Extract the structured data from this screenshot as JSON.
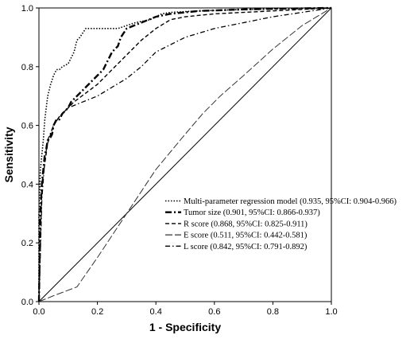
{
  "chart_data": {
    "type": "line",
    "xlabel": "1 - Specificity",
    "ylabel": "Sensitivity",
    "xlim": [
      0,
      1
    ],
    "ylim": [
      0,
      1
    ],
    "x_ticks": [
      "0.0",
      "0.2",
      "0.4",
      "0.6",
      "0.8",
      "1.0"
    ],
    "y_ticks": [
      "0.0",
      "0.2",
      "0.4",
      "0.6",
      "0.8",
      "1.0"
    ],
    "grid": false,
    "legend_position": "lower-right",
    "reference_line": {
      "x": [
        0,
        1
      ],
      "y": [
        0,
        1
      ]
    },
    "series": [
      {
        "name": "Multi-parameter regression model (0.935, 95%CI: 0.904-0.966)",
        "style": "dotted",
        "x": [
          0,
          0,
          0.005,
          0.01,
          0.015,
          0.02,
          0.025,
          0.03,
          0.04,
          0.05,
          0.06,
          0.07,
          0.08,
          0.1,
          0.11,
          0.12,
          0.13,
          0.14,
          0.16,
          0.2,
          0.27,
          0.33,
          0.38,
          0.4,
          0.42,
          0.45,
          0.55,
          0.7,
          0.85,
          1
        ],
        "y": [
          0,
          0.3,
          0.45,
          0.5,
          0.55,
          0.62,
          0.66,
          0.7,
          0.74,
          0.77,
          0.79,
          0.79,
          0.8,
          0.81,
          0.83,
          0.85,
          0.89,
          0.9,
          0.93,
          0.93,
          0.93,
          0.95,
          0.96,
          0.97,
          0.98,
          0.985,
          0.99,
          0.995,
          0.998,
          1
        ]
      },
      {
        "name": "Tumor size",
        "label": "Tumor size (0.901, 95%CI: 0.866-0.937)",
        "style": "dash-dot-thick",
        "x": [
          0,
          0.005,
          0.01,
          0.015,
          0.02,
          0.025,
          0.03,
          0.04,
          0.045,
          0.05,
          0.06,
          0.07,
          0.08,
          0.09,
          0.1,
          0.11,
          0.13,
          0.15,
          0.18,
          0.2,
          0.22,
          0.25,
          0.27,
          0.28,
          0.3,
          0.35,
          0.4,
          0.45,
          0.55,
          0.7,
          0.85,
          1
        ],
        "y": [
          0,
          0.3,
          0.4,
          0.45,
          0.5,
          0.52,
          0.55,
          0.56,
          0.57,
          0.6,
          0.62,
          0.62,
          0.64,
          0.65,
          0.66,
          0.68,
          0.7,
          0.72,
          0.75,
          0.77,
          0.79,
          0.85,
          0.87,
          0.9,
          0.93,
          0.95,
          0.97,
          0.98,
          0.99,
          0.995,
          0.998,
          1
        ]
      },
      {
        "name": "R score",
        "label": "R score      (0.868, 95%CI: 0.825-0.911)",
        "style": "dashed",
        "x": [
          0,
          0.01,
          0.03,
          0.05,
          0.07,
          0.09,
          0.12,
          0.16,
          0.2,
          0.25,
          0.3,
          0.35,
          0.4,
          0.45,
          0.5,
          0.6,
          0.8,
          1
        ],
        "y": [
          0,
          0.4,
          0.54,
          0.6,
          0.63,
          0.65,
          0.68,
          0.71,
          0.74,
          0.79,
          0.84,
          0.89,
          0.93,
          0.96,
          0.97,
          0.98,
          0.99,
          1
        ]
      },
      {
        "name": "E score",
        "label": "E score      (0.511, 95%CI: 0.442-0.581)",
        "style": "long-dash-thin",
        "x": [
          0,
          0.05,
          0.13,
          0.2,
          0.3,
          0.4,
          0.5,
          0.56,
          0.62,
          0.7,
          0.8,
          0.9,
          1
        ],
        "y": [
          0,
          0.02,
          0.05,
          0.15,
          0.3,
          0.45,
          0.57,
          0.64,
          0.7,
          0.77,
          0.86,
          0.94,
          1
        ]
      },
      {
        "name": "L score",
        "label": "L score      (0.842, 95%CI: 0.791-0.892)",
        "style": "dash-dot",
        "x": [
          0,
          0.01,
          0.02,
          0.03,
          0.05,
          0.07,
          0.1,
          0.15,
          0.2,
          0.25,
          0.3,
          0.35,
          0.4,
          0.5,
          0.6,
          0.7,
          0.8,
          1
        ],
        "y": [
          0,
          0.35,
          0.48,
          0.55,
          0.6,
          0.63,
          0.66,
          0.68,
          0.7,
          0.73,
          0.76,
          0.8,
          0.85,
          0.9,
          0.93,
          0.95,
          0.97,
          1
        ]
      }
    ]
  }
}
